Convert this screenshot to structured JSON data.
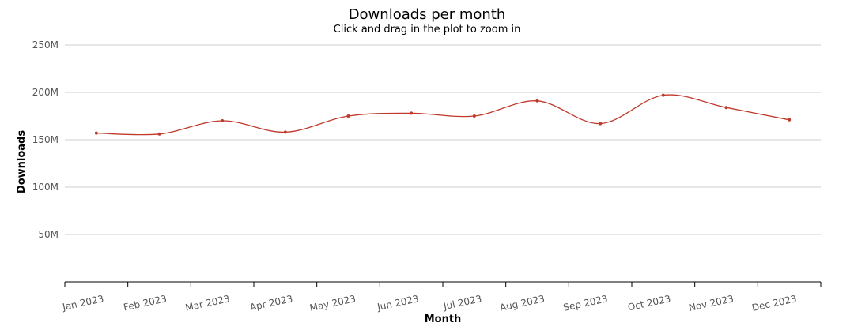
{
  "chart_data": {
    "type": "line",
    "title": "Downloads per month",
    "subtitle": "Click and drag in the plot to zoom in",
    "xlabel": "Month",
    "ylabel": "Downloads",
    "ylim": [
      0,
      250000000
    ],
    "y_ticks": [
      50000000,
      100000000,
      150000000,
      200000000,
      250000000
    ],
    "y_tick_labels": [
      "50M",
      "100M",
      "150M",
      "200M",
      "250M"
    ],
    "categories": [
      "Jan 2023",
      "Feb 2023",
      "Mar 2023",
      "Apr 2023",
      "May 2023",
      "Jun 2023",
      "Jul 2023",
      "Aug 2023",
      "Sep 2023",
      "Oct 2023",
      "Nov 2023",
      "Dec 2023"
    ],
    "series": [
      {
        "values": [
          157000000,
          156000000,
          170000000,
          158000000,
          175000000,
          178000000,
          175000000,
          191000000,
          167000000,
          197000000,
          184000000,
          171000000
        ],
        "color": "#c0392b"
      }
    ],
    "grid": true,
    "legend": "none"
  }
}
